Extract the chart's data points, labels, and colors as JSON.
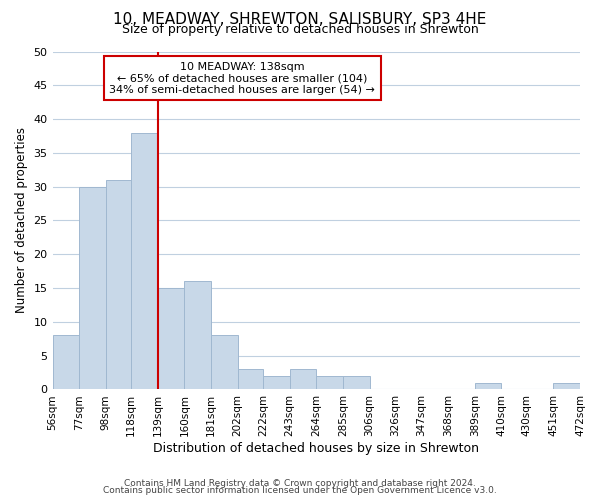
{
  "title": "10, MEADWAY, SHREWTON, SALISBURY, SP3 4HE",
  "subtitle": "Size of property relative to detached houses in Shrewton",
  "xlabel": "Distribution of detached houses by size in Shrewton",
  "ylabel": "Number of detached properties",
  "bar_color": "#c8d8e8",
  "bar_edge_color": "#a0b8d0",
  "background_color": "#ffffff",
  "grid_color": "#c0d0e0",
  "bins": [
    56,
    77,
    98,
    118,
    139,
    160,
    181,
    202,
    222,
    243,
    264,
    285,
    306,
    326,
    347,
    368,
    389,
    410,
    430,
    451,
    472
  ],
  "counts": [
    8,
    30,
    31,
    38,
    15,
    16,
    8,
    3,
    2,
    3,
    2,
    2,
    0,
    0,
    0,
    0,
    1,
    0,
    0,
    1
  ],
  "tick_labels": [
    "56sqm",
    "77sqm",
    "98sqm",
    "118sqm",
    "139sqm",
    "160sqm",
    "181sqm",
    "202sqm",
    "222sqm",
    "243sqm",
    "264sqm",
    "285sqm",
    "306sqm",
    "326sqm",
    "347sqm",
    "368sqm",
    "389sqm",
    "410sqm",
    "430sqm",
    "451sqm",
    "472sqm"
  ],
  "property_line_x": 139,
  "annotation_title": "10 MEADWAY: 138sqm",
  "annotation_line1": "← 65% of detached houses are smaller (104)",
  "annotation_line2": "34% of semi-detached houses are larger (54) →",
  "annotation_box_color": "#ffffff",
  "annotation_box_edge": "#cc0000",
  "property_line_color": "#cc0000",
  "ylim": [
    0,
    50
  ],
  "yticks": [
    0,
    5,
    10,
    15,
    20,
    25,
    30,
    35,
    40,
    45,
    50
  ],
  "footer_line1": "Contains HM Land Registry data © Crown copyright and database right 2024.",
  "footer_line2": "Contains public sector information licensed under the Open Government Licence v3.0."
}
